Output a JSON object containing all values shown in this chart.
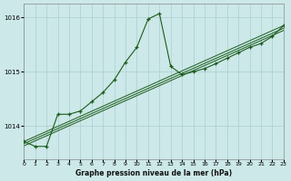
{
  "title": "Graphe pression niveau de la mer (hPa)",
  "bg_color": "#cce8e8",
  "line_color": "#1a5c1a",
  "grid_color": "#aacfcf",
  "x_min": 0,
  "x_max": 23,
  "y_min": 1013.4,
  "y_max": 1016.25,
  "yticks": [
    1014,
    1015,
    1016
  ],
  "xticks": [
    0,
    1,
    2,
    3,
    4,
    5,
    6,
    7,
    8,
    9,
    10,
    11,
    12,
    13,
    14,
    15,
    16,
    17,
    18,
    19,
    20,
    21,
    22,
    23
  ],
  "main_line": {
    "x": [
      0,
      1,
      2,
      3,
      4,
      5,
      6,
      7,
      8,
      9,
      10,
      11,
      12,
      13,
      14,
      15,
      16,
      17,
      18,
      19,
      20,
      21,
      22,
      23
    ],
    "y": [
      1013.72,
      1013.63,
      1013.63,
      1014.22,
      1014.22,
      1014.28,
      1014.45,
      1014.62,
      1014.85,
      1015.18,
      1015.45,
      1015.97,
      1016.07,
      1015.1,
      1014.95,
      1015.0,
      1015.06,
      1015.15,
      1015.25,
      1015.35,
      1015.45,
      1015.52,
      1015.65,
      1015.85
    ]
  },
  "linear1": {
    "x": [
      0,
      23
    ],
    "y": [
      1013.72,
      1015.85
    ]
  },
  "linear2": {
    "x": [
      0,
      23
    ],
    "y": [
      1013.68,
      1015.8
    ]
  },
  "linear3": {
    "x": [
      0,
      23
    ],
    "y": [
      1013.64,
      1015.76
    ]
  }
}
